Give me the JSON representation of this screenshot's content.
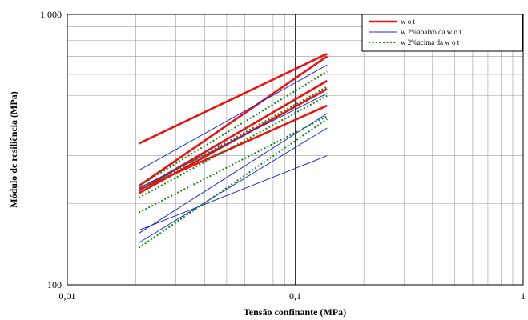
{
  "chart_data": {
    "type": "line",
    "xlabel": "Tensão confinante (MPa)",
    "ylabel": "Módulo de resiliência (MPa)",
    "x_scale": "log",
    "y_scale": "log",
    "xlim": [
      0.01,
      1
    ],
    "ylim": [
      100,
      1000
    ],
    "x_ticks": [
      0.01,
      0.1,
      1
    ],
    "x_tick_labels": [
      "0,01",
      "0,1",
      "1"
    ],
    "y_ticks": [
      100,
      1000
    ],
    "y_tick_labels": [
      "100",
      "1.000"
    ],
    "grid": "major and minor",
    "legend_position": "top-right",
    "legend": [
      {
        "label": "w o t",
        "style": "solid-thick",
        "color": "#ee1111"
      },
      {
        "label": "w  2%abaixo da w o t",
        "style": "solid-thin",
        "color": "#1b2ed4"
      },
      {
        "label": "w  2%acima da w o t",
        "style": "dotted",
        "color": "#138a13"
      }
    ],
    "series": [
      {
        "group": "w o t",
        "color": "#ee1111",
        "style": "solid-thick",
        "x": [
          0.0206,
          0.138
        ],
        "y": [
          333,
          715
        ]
      },
      {
        "group": "w o t",
        "color": "#ee1111",
        "style": "solid-thick",
        "x": [
          0.0206,
          0.138
        ],
        "y": [
          232,
          700
        ]
      },
      {
        "group": "w o t",
        "color": "#ee1111",
        "style": "solid-thick",
        "x": [
          0.0206,
          0.138
        ],
        "y": [
          223,
          568
        ]
      },
      {
        "group": "w o t",
        "color": "#ee1111",
        "style": "solid-thick",
        "x": [
          0.0206,
          0.138
        ],
        "y": [
          218,
          530
        ]
      },
      {
        "group": "w o t",
        "color": "#ee1111",
        "style": "solid-thick",
        "x": [
          0.0206,
          0.138
        ],
        "y": [
          225,
          460
        ]
      },
      {
        "group": "w  2%abaixo da w o t",
        "color": "#1b2ed4",
        "style": "solid-thin",
        "x": [
          0.0206,
          0.138
        ],
        "y": [
          265,
          650
        ]
      },
      {
        "group": "w  2%abaixo da w o t",
        "color": "#1b2ed4",
        "style": "solid-thin",
        "x": [
          0.0206,
          0.138
        ],
        "y": [
          228,
          510
        ]
      },
      {
        "group": "w  2%abaixo da w o t",
        "color": "#1b2ed4",
        "style": "solid-thin",
        "x": [
          0.0206,
          0.138
        ],
        "y": [
          155,
          430
        ]
      },
      {
        "group": "w  2%abaixo da w o t",
        "color": "#1b2ed4",
        "style": "solid-thin",
        "x": [
          0.0206,
          0.138
        ],
        "y": [
          143,
          380
        ]
      },
      {
        "group": "w  2%abaixo da w o t",
        "color": "#1b2ed4",
        "style": "solid-thin",
        "x": [
          0.0206,
          0.138
        ],
        "y": [
          159,
          300
        ]
      },
      {
        "group": "w  2%acima da w o t",
        "color": "#138a13",
        "style": "dotted",
        "x": [
          0.0206,
          0.138
        ],
        "y": [
          232,
          615
        ]
      },
      {
        "group": "w  2%acima da w o t",
        "color": "#138a13",
        "style": "dotted",
        "x": [
          0.0206,
          0.138
        ],
        "y": [
          222,
          540
        ]
      },
      {
        "group": "w  2%acima da w o t",
        "color": "#138a13",
        "style": "dotted",
        "x": [
          0.0206,
          0.138
        ],
        "y": [
          210,
          500
        ]
      },
      {
        "group": "w  2%acima da w o t",
        "color": "#138a13",
        "style": "dotted",
        "x": [
          0.0206,
          0.138
        ],
        "y": [
          185,
          420
        ]
      },
      {
        "group": "w  2%acima da w o t",
        "color": "#138a13",
        "style": "dotted",
        "x": [
          0.0206,
          0.138
        ],
        "y": [
          137,
          410
        ]
      }
    ]
  }
}
